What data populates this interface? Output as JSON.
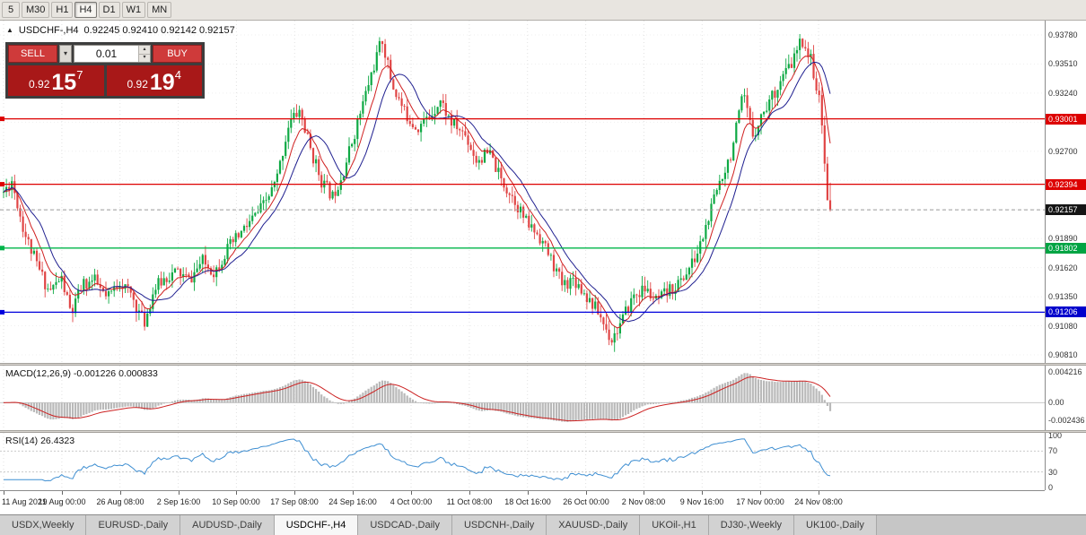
{
  "toolbar": {
    "timeframes": [
      "5",
      "M30",
      "H1",
      "H4",
      "D1",
      "W1",
      "MN"
    ],
    "active_timeframe": "H4"
  },
  "chart_header": {
    "marker": "▲",
    "symbol": "USDCHF-,H4",
    "ohlc_text": "0.92245 0.92410 0.92142 0.92157"
  },
  "trade_widget": {
    "sell_label": "SELL",
    "buy_label": "BUY",
    "lot": "0.01",
    "sell_price": {
      "prefix": "0.92",
      "big": "15",
      "sup": "7"
    },
    "buy_price": {
      "prefix": "0.92",
      "big": "19",
      "sup": "4"
    }
  },
  "chart_data": {
    "type": "candlestick",
    "symbol": "USDCHF-",
    "timeframe": "H4",
    "current_ohlc": {
      "open": 0.92245,
      "high": 0.9241,
      "low": 0.92142,
      "close": 0.92157
    },
    "current_price": {
      "value": 0.92157,
      "label_bg": "#151515"
    },
    "y_axis": {
      "min": 0.9081,
      "max": 0.9378,
      "ticks": [
        0.9378,
        0.9351,
        0.9324,
        0.9297,
        0.927,
        0.9243,
        0.9216,
        0.9189,
        0.9162,
        0.9135,
        0.9108,
        0.9081
      ]
    },
    "time_labels": [
      "11 Aug 2021",
      "19 Aug 00:00",
      "26 Aug 08:00",
      "2 Sep 16:00",
      "10 Sep 00:00",
      "17 Sep 08:00",
      "24 Sep 16:00",
      "4 Oct 00:00",
      "11 Oct 08:00",
      "18 Oct 16:00",
      "26 Oct 00:00",
      "2 Nov 08:00",
      "9 Nov 16:00",
      "17 Nov 00:00",
      "24 Nov 08:00"
    ],
    "horizontal_lines": [
      {
        "price": 0.93001,
        "color": "#dd0000",
        "label_bg": "#dd0000"
      },
      {
        "price": 0.92394,
        "color": "#dd0000",
        "label_bg": "#dd0000"
      },
      {
        "price": 0.91802,
        "color": "#00b44a",
        "label_bg": "#00a443"
      },
      {
        "price": 0.91206,
        "color": "#0000dd",
        "label_bg": "#0000cc"
      }
    ],
    "colors": {
      "up": "#0ea944",
      "down": "#e04545",
      "ma_fast": "#d02020",
      "ma_slow": "#202090"
    },
    "candle_count": 300,
    "seed": 11,
    "price_path": [
      [
        0.0,
        0.9232
      ],
      [
        0.01,
        0.9243
      ],
      [
        0.025,
        0.9195
      ],
      [
        0.04,
        0.9165
      ],
      [
        0.055,
        0.914
      ],
      [
        0.07,
        0.9152
      ],
      [
        0.082,
        0.9118
      ],
      [
        0.095,
        0.9146
      ],
      [
        0.11,
        0.915
      ],
      [
        0.125,
        0.9132
      ],
      [
        0.14,
        0.915
      ],
      [
        0.155,
        0.9136
      ],
      [
        0.17,
        0.911
      ],
      [
        0.182,
        0.9142
      ],
      [
        0.196,
        0.9153
      ],
      [
        0.21,
        0.9158
      ],
      [
        0.225,
        0.915
      ],
      [
        0.24,
        0.9168
      ],
      [
        0.255,
        0.9158
      ],
      [
        0.27,
        0.9178
      ],
      [
        0.285,
        0.9192
      ],
      [
        0.3,
        0.9206
      ],
      [
        0.315,
        0.922
      ],
      [
        0.33,
        0.9242
      ],
      [
        0.345,
        0.9296
      ],
      [
        0.358,
        0.9308
      ],
      [
        0.372,
        0.927
      ],
      [
        0.385,
        0.9242
      ],
      [
        0.398,
        0.9228
      ],
      [
        0.412,
        0.9254
      ],
      [
        0.428,
        0.9296
      ],
      [
        0.445,
        0.9342
      ],
      [
        0.458,
        0.9374
      ],
      [
        0.47,
        0.9332
      ],
      [
        0.485,
        0.9306
      ],
      [
        0.5,
        0.9292
      ],
      [
        0.515,
        0.9302
      ],
      [
        0.528,
        0.9318
      ],
      [
        0.542,
        0.9296
      ],
      [
        0.558,
        0.9286
      ],
      [
        0.572,
        0.9262
      ],
      [
        0.588,
        0.9268
      ],
      [
        0.602,
        0.9243
      ],
      [
        0.618,
        0.9226
      ],
      [
        0.632,
        0.9204
      ],
      [
        0.648,
        0.9192
      ],
      [
        0.662,
        0.917
      ],
      [
        0.676,
        0.9146
      ],
      [
        0.69,
        0.9152
      ],
      [
        0.705,
        0.9136
      ],
      [
        0.72,
        0.912
      ],
      [
        0.735,
        0.9095
      ],
      [
        0.748,
        0.9112
      ],
      [
        0.762,
        0.9136
      ],
      [
        0.776,
        0.9142
      ],
      [
        0.79,
        0.913
      ],
      [
        0.805,
        0.914
      ],
      [
        0.82,
        0.915
      ],
      [
        0.838,
        0.9172
      ],
      [
        0.852,
        0.9205
      ],
      [
        0.866,
        0.9242
      ],
      [
        0.88,
        0.9268
      ],
      [
        0.895,
        0.9322
      ],
      [
        0.906,
        0.9285
      ],
      [
        0.918,
        0.9305
      ],
      [
        0.93,
        0.9322
      ],
      [
        0.942,
        0.9338
      ],
      [
        0.954,
        0.9352
      ],
      [
        0.966,
        0.9374
      ],
      [
        0.978,
        0.9352
      ],
      [
        0.988,
        0.931
      ],
      [
        0.995,
        0.925
      ],
      [
        1.0,
        0.9216
      ]
    ],
    "indicators": {
      "macd": {
        "label": "MACD(12,26,9) -0.001226 0.000833",
        "params": "12,26,9",
        "value": -0.001226,
        "signal": 0.000833,
        "axis_values": [
          "0.004216",
          "0.00",
          "-0.002436"
        ],
        "axis_numbers": [
          0.004216,
          0,
          -0.002436
        ],
        "range": [
          -0.003,
          0.0048
        ],
        "histogram_color": "#b9b9b9",
        "signal_color": "#cc2222"
      },
      "rsi": {
        "label": "RSI(14) 26.4323",
        "period": 14,
        "value": 26.4323,
        "axis_values": [
          "100",
          "70",
          "30",
          "0"
        ],
        "axis_numbers": [
          100,
          70,
          30,
          0
        ],
        "levels": [
          70,
          30
        ],
        "line_color": "#3f8fd2"
      }
    }
  },
  "tabs": [
    "USDX,Weekly",
    "EURUSD-,Daily",
    "AUDUSD-,Daily",
    "USDCHF-,H4",
    "USDCAD-,Daily",
    "USDCNH-,Daily",
    "XAUUSD-,Daily",
    "UKOil-,H1",
    "DJ30-,Weekly",
    "UK100-,Daily"
  ],
  "active_tab": "USDCHF-,H4"
}
